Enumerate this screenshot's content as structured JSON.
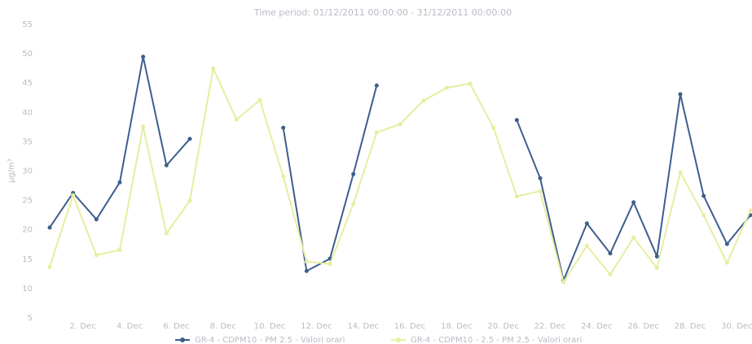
{
  "chart_data": {
    "type": "line",
    "title": "Time period: 01/12/2011 00:00:00 - 31/12/2011 00:00:00",
    "y_label": "µg/m³",
    "x": [
      1,
      2,
      3,
      4,
      5,
      6,
      7,
      8,
      9,
      10,
      11,
      12,
      13,
      14,
      15,
      16,
      17,
      18,
      19,
      20,
      21,
      22,
      23,
      24,
      25,
      26,
      27,
      28,
      29,
      30,
      31
    ],
    "xlim": [
      1,
      31
    ],
    "xticks": [
      {
        "value": 2,
        "label": "2. Dec"
      },
      {
        "value": 4,
        "label": "4. Dec"
      },
      {
        "value": 6,
        "label": "6. Dec"
      },
      {
        "value": 8,
        "label": "8. Dec"
      },
      {
        "value": 10,
        "label": "10. Dec"
      },
      {
        "value": 12,
        "label": "12. Dec"
      },
      {
        "value": 14,
        "label": "14. Dec"
      },
      {
        "value": 16,
        "label": "16. Dec"
      },
      {
        "value": 18,
        "label": "18. Dec"
      },
      {
        "value": 20,
        "label": "20. Dec"
      },
      {
        "value": 22,
        "label": "22. Dec"
      },
      {
        "value": 24,
        "label": "24. Dec"
      },
      {
        "value": 26,
        "label": "26. Dec"
      },
      {
        "value": 28,
        "label": "28. Dec"
      },
      {
        "value": 30,
        "label": "30. Dec"
      }
    ],
    "ylim": [
      5,
      55
    ],
    "yticks": [
      5,
      10,
      15,
      20,
      25,
      30,
      35,
      40,
      45,
      50,
      55
    ],
    "series": [
      {
        "name": "GR-4 - CDPM10 - PM 2.5 - Valori orari",
        "color": "#3d5e8e",
        "values": [
          20.4,
          26.3,
          21.8,
          28.1,
          49.5,
          31,
          35.5,
          null,
          null,
          null,
          37.4,
          13,
          15.1,
          29.5,
          44.6,
          null,
          null,
          null,
          null,
          null,
          38.7,
          28.8,
          11.4,
          21.1,
          16,
          24.7,
          15.5,
          43.1,
          25.8,
          17.6,
          22.5
        ]
      },
      {
        "name": "GR-4 - CDPM10 - 2.5 - PM 2.5 - Valori orari",
        "color": "#e6eea0",
        "values": [
          13.7,
          25.9,
          15.7,
          16.6,
          37.6,
          19.4,
          25,
          47.5,
          38.8,
          42.1,
          29.1,
          14.6,
          14.2,
          24.4,
          36.6,
          38,
          42,
          44.2,
          44.9,
          37.4,
          25.7,
          26.6,
          11.1,
          17.3,
          12.4,
          18.7,
          13.5,
          29.8,
          22.5,
          14.4,
          23.3
        ]
      }
    ]
  }
}
